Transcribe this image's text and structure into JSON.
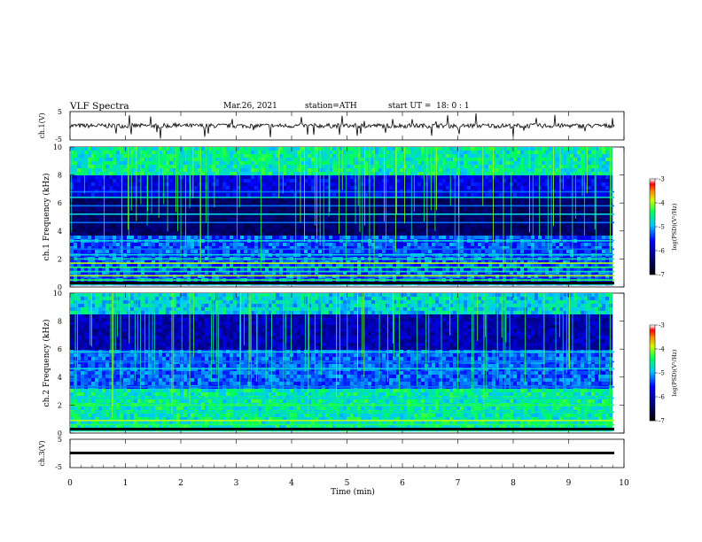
{
  "header": {
    "title": "VLF Spectra",
    "date": "Mar.26, 2021",
    "station": "station=ATH",
    "start": "start UT =  18: 0 : 1"
  },
  "chart_data": [
    {
      "type": "line",
      "panel": "ch1-waveform",
      "ylabel": "ch.1(V)",
      "yticks": [
        "5",
        "-5"
      ],
      "ylim": [
        -5,
        5
      ],
      "xlim": [
        0,
        10
      ],
      "note_series": "noisy trace near 0 V with short spikes",
      "mean_value": 0
    },
    {
      "type": "heatmap",
      "panel": "ch1-spectrogram",
      "ylabel": "ch.1 Frequency (kHz)",
      "yticks": [
        "0",
        "2",
        "4",
        "6",
        "8",
        "10"
      ],
      "ylim": [
        0,
        10
      ],
      "xlim": [
        0,
        9.8
      ],
      "colorbar": {
        "label": "log(PSD)(V²/Hz)",
        "ticks": [
          "-3",
          "-4",
          "-5",
          "-6",
          "-7"
        ],
        "range": [
          -7,
          -3
        ]
      },
      "bands_khz": [
        0.2,
        0.5,
        0.8,
        1.1,
        1.4,
        1.7,
        2.0,
        2.3,
        2.7,
        3.3,
        4.6,
        5.2,
        5.8,
        6.4,
        6.8
      ],
      "colorscale": [
        "#000000",
        "#000080",
        "#0000ff",
        "#00c8ff",
        "#00ff60",
        "#d8ff00",
        "#ff8800",
        "#ff0000",
        "#ffffff"
      ]
    },
    {
      "type": "heatmap",
      "panel": "ch2-spectrogram",
      "ylabel": "ch.2 Frequency (kHz)",
      "yticks": [
        "0",
        "2",
        "4",
        "6",
        "8",
        "10"
      ],
      "ylim": [
        0,
        10
      ],
      "xlim": [
        0,
        9.8
      ],
      "colorbar": {
        "label": "log(PSD)(V²/Hz)",
        "ticks": [
          "-3",
          "-4",
          "-5",
          "-6",
          "-7"
        ],
        "range": [
          -7,
          -3
        ]
      },
      "bands_khz": [
        0.2,
        0.6,
        0.9,
        1.5,
        2.0,
        2.5,
        3.3,
        4.6,
        5.1,
        5.8
      ]
    },
    {
      "type": "line",
      "panel": "ch3-waveform",
      "ylabel": "ch.3(V)",
      "yticks": [
        "5",
        "-5"
      ],
      "ylim": [
        -5,
        5
      ],
      "xlim": [
        0,
        10
      ],
      "mean_value": -2.5
    }
  ],
  "x_axis": {
    "label": "Time (min)",
    "ticks": [
      "0",
      "1",
      "2",
      "3",
      "4",
      "5",
      "6",
      "7",
      "8",
      "9",
      "10"
    ]
  }
}
